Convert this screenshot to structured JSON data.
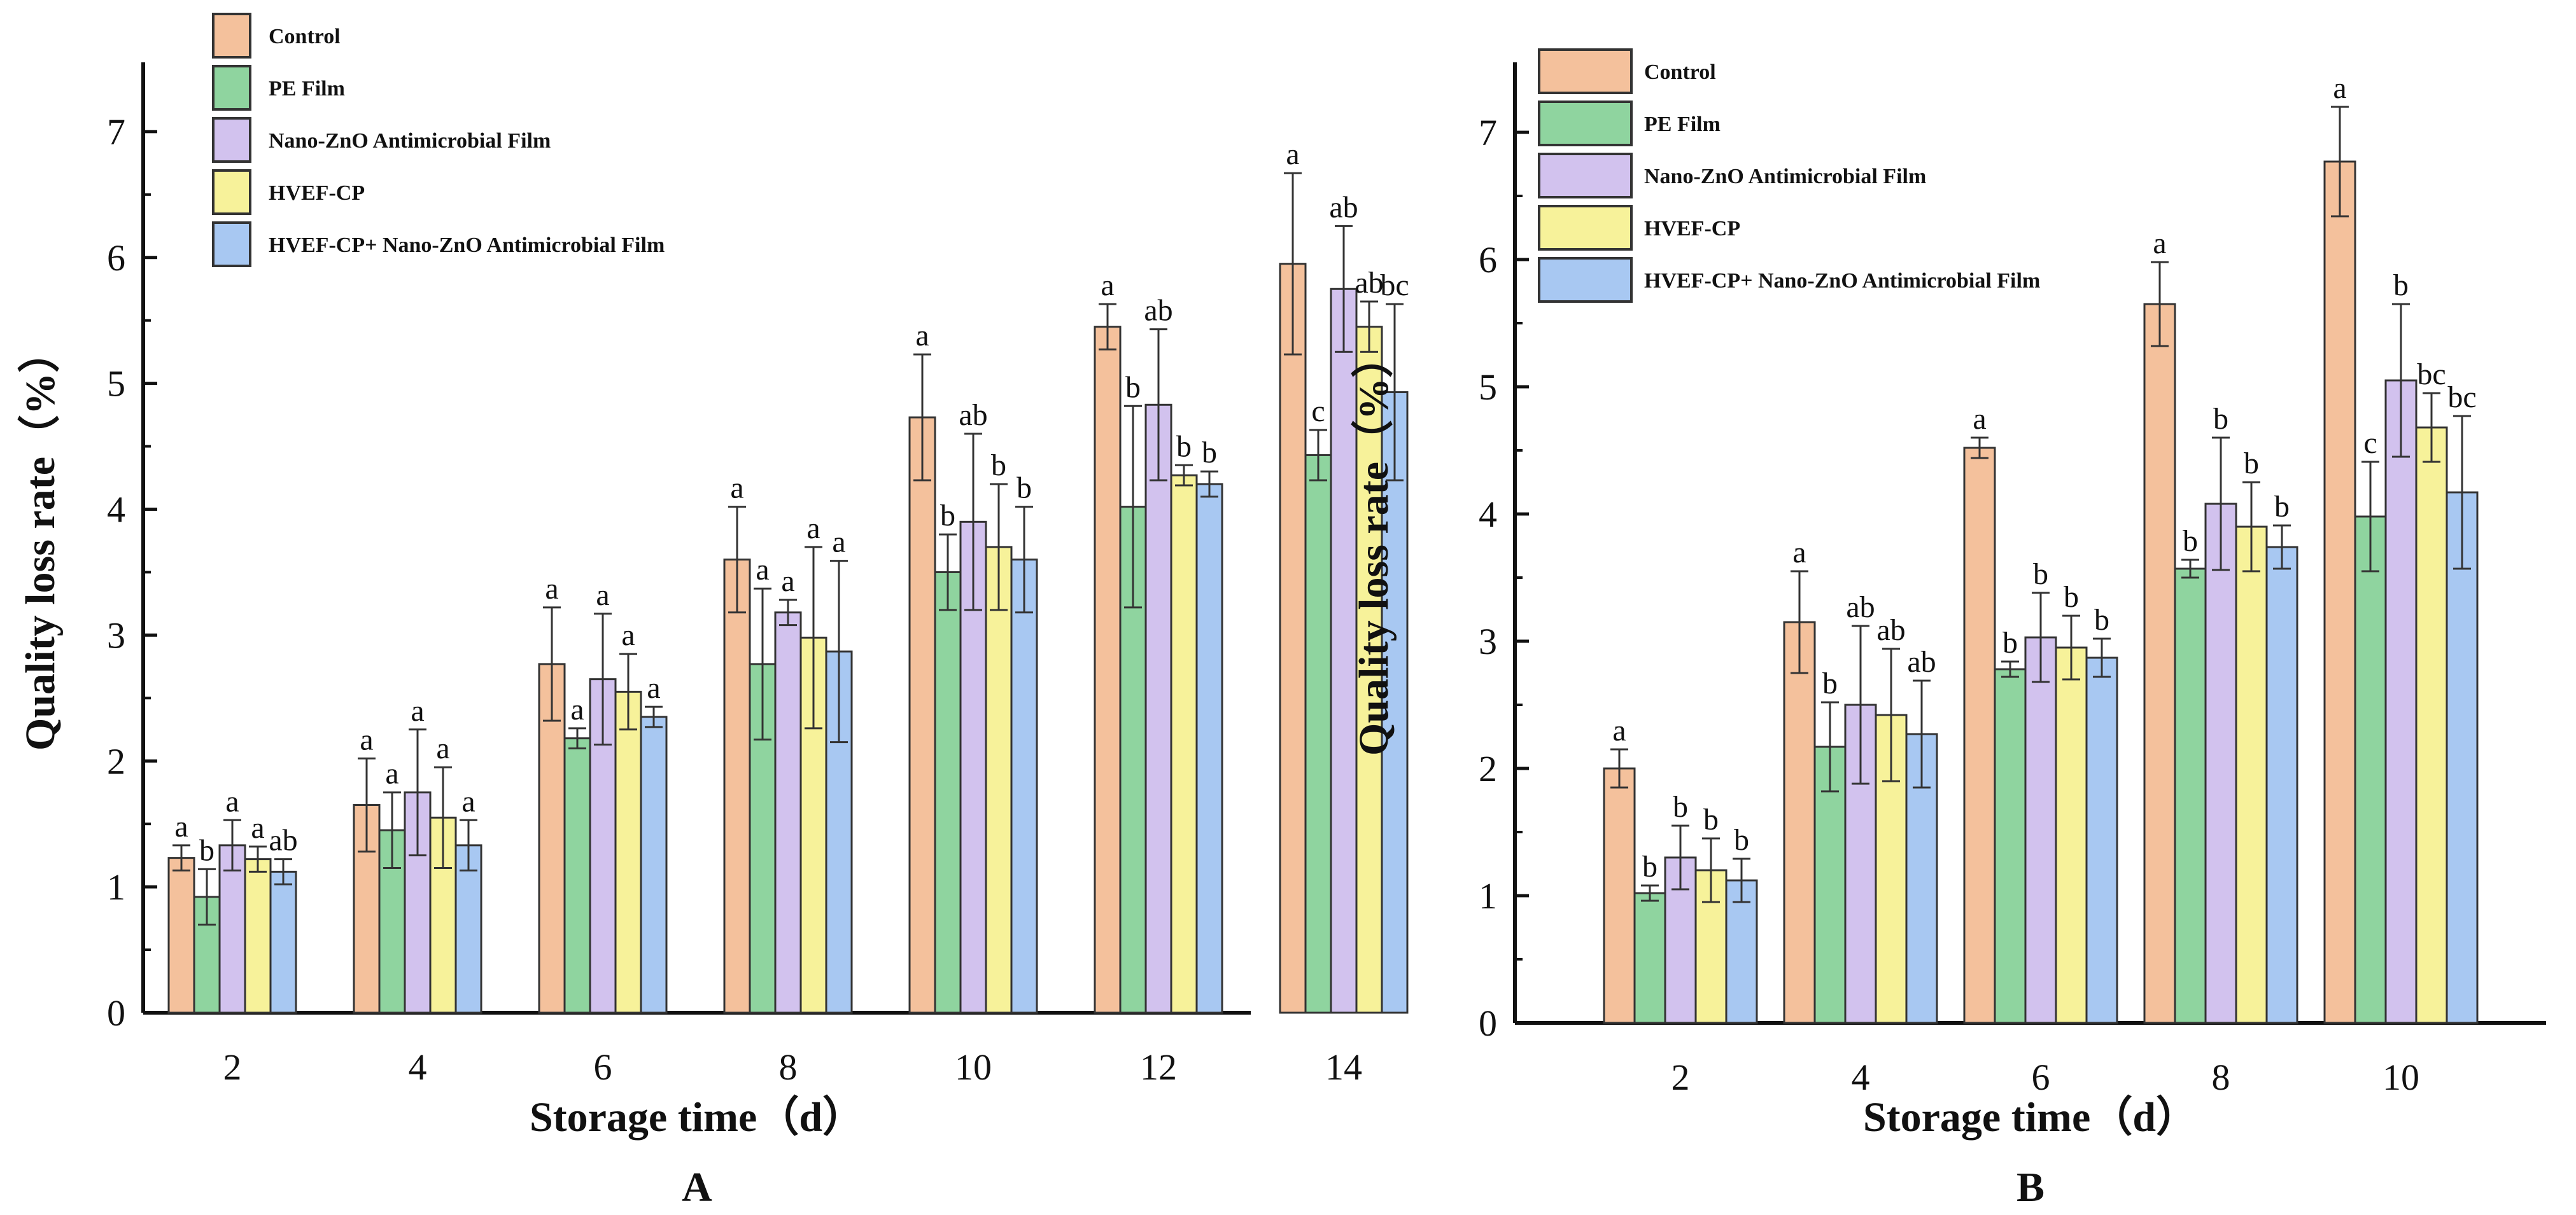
{
  "chart_data": [
    {
      "type": "bar",
      "panel_label": "A",
      "xlabel": "Storage time（d）",
      "ylabel": "Quality loss rate（%）",
      "ylim": [
        0,
        7.5
      ],
      "yticks": [
        0,
        1,
        2,
        3,
        4,
        5,
        6,
        7
      ],
      "categories": [
        "2",
        "4",
        "6",
        "8",
        "10",
        "12",
        "14"
      ],
      "legend_position": "top-left",
      "series": [
        {
          "name": "Control",
          "color": "#f4c19c",
          "values": [
            1.23,
            1.65,
            2.77,
            3.6,
            4.73,
            5.45,
            5.95
          ],
          "errors": [
            0.1,
            0.37,
            0.45,
            0.42,
            0.5,
            0.18,
            0.72
          ],
          "letters": [
            "a",
            "a",
            "a",
            "a",
            "a",
            "a",
            "a"
          ]
        },
        {
          "name": "PE Film",
          "color": "#8fd49f",
          "values": [
            0.92,
            1.45,
            2.18,
            2.77,
            3.5,
            4.02,
            4.43
          ],
          "errors": [
            0.22,
            0.3,
            0.08,
            0.6,
            0.3,
            0.8,
            0.2
          ],
          "letters": [
            "b",
            "a",
            "a",
            "a",
            "b",
            "b",
            "c"
          ]
        },
        {
          "name": "Nano-ZnO Antimicrobial Film",
          "color": "#d2c2ee",
          "values": [
            1.33,
            1.75,
            2.65,
            3.18,
            3.9,
            4.83,
            5.75
          ],
          "errors": [
            0.2,
            0.5,
            0.52,
            0.1,
            0.7,
            0.6,
            0.5
          ],
          "letters": [
            "a",
            "a",
            "a",
            "a",
            "ab",
            "ab",
            "ab"
          ]
        },
        {
          "name": "HVEF-CP",
          "color": "#f7f29a",
          "values": [
            1.22,
            1.55,
            2.55,
            2.98,
            3.7,
            4.27,
            5.45
          ],
          "errors": [
            0.1,
            0.4,
            0.3,
            0.72,
            0.5,
            0.08,
            0.2
          ],
          "letters": [
            "a",
            "a",
            "a",
            "a",
            "b",
            "b",
            "ab"
          ]
        },
        {
          "name": "HVEF-CP+ Nano-ZnO Antimicrobial Film",
          "color": "#a8c8f2",
          "values": [
            1.12,
            1.33,
            2.35,
            2.87,
            3.6,
            4.2,
            4.93
          ],
          "errors": [
            0.1,
            0.2,
            0.08,
            0.72,
            0.42,
            0.1,
            0.7
          ],
          "letters": [
            "ab",
            "a",
            "a",
            "a",
            "b",
            "b",
            "bc"
          ]
        }
      ]
    },
    {
      "type": "bar",
      "panel_label": "B",
      "xlabel": "Storage time（d）",
      "ylabel": "Quality loss rate（%）",
      "ylim": [
        0,
        7.5
      ],
      "yticks": [
        0,
        1,
        2,
        3,
        4,
        5,
        6,
        7
      ],
      "categories": [
        "2",
        "4",
        "6",
        "8",
        "10"
      ],
      "legend_position": "top-left",
      "series": [
        {
          "name": "Control",
          "color": "#f4c19c",
          "values": [
            2.0,
            3.15,
            4.52,
            5.65,
            6.77
          ],
          "errors": [
            0.15,
            0.4,
            0.08,
            0.33,
            0.43
          ],
          "letters": [
            "a",
            "a",
            "a",
            "a",
            "a"
          ]
        },
        {
          "name": "PE Film",
          "color": "#8fd49f",
          "values": [
            1.02,
            2.17,
            2.78,
            3.57,
            3.98
          ],
          "errors": [
            0.06,
            0.35,
            0.06,
            0.07,
            0.43
          ],
          "letters": [
            "b",
            "b",
            "b",
            "b",
            "c"
          ]
        },
        {
          "name": "Nano-ZnO Antimicrobial Film",
          "color": "#d2c2ee",
          "values": [
            1.3,
            2.5,
            3.03,
            4.08,
            5.05
          ],
          "errors": [
            0.25,
            0.62,
            0.35,
            0.52,
            0.6
          ],
          "letters": [
            "b",
            "ab",
            "b",
            "b",
            "b"
          ]
        },
        {
          "name": "HVEF-CP",
          "color": "#f7f29a",
          "values": [
            1.2,
            2.42,
            2.95,
            3.9,
            4.68
          ],
          "errors": [
            0.25,
            0.52,
            0.25,
            0.35,
            0.27
          ],
          "letters": [
            "b",
            "ab",
            "b",
            "b",
            "bc"
          ]
        },
        {
          "name": "HVEF-CP+ Nano-ZnO Antimicrobial Film",
          "color": "#a8c8f2",
          "values": [
            1.12,
            2.27,
            2.87,
            3.74,
            4.17
          ],
          "errors": [
            0.17,
            0.42,
            0.15,
            0.17,
            0.6
          ],
          "letters": [
            "b",
            "ab",
            "b",
            "b",
            "bc"
          ]
        }
      ]
    }
  ]
}
